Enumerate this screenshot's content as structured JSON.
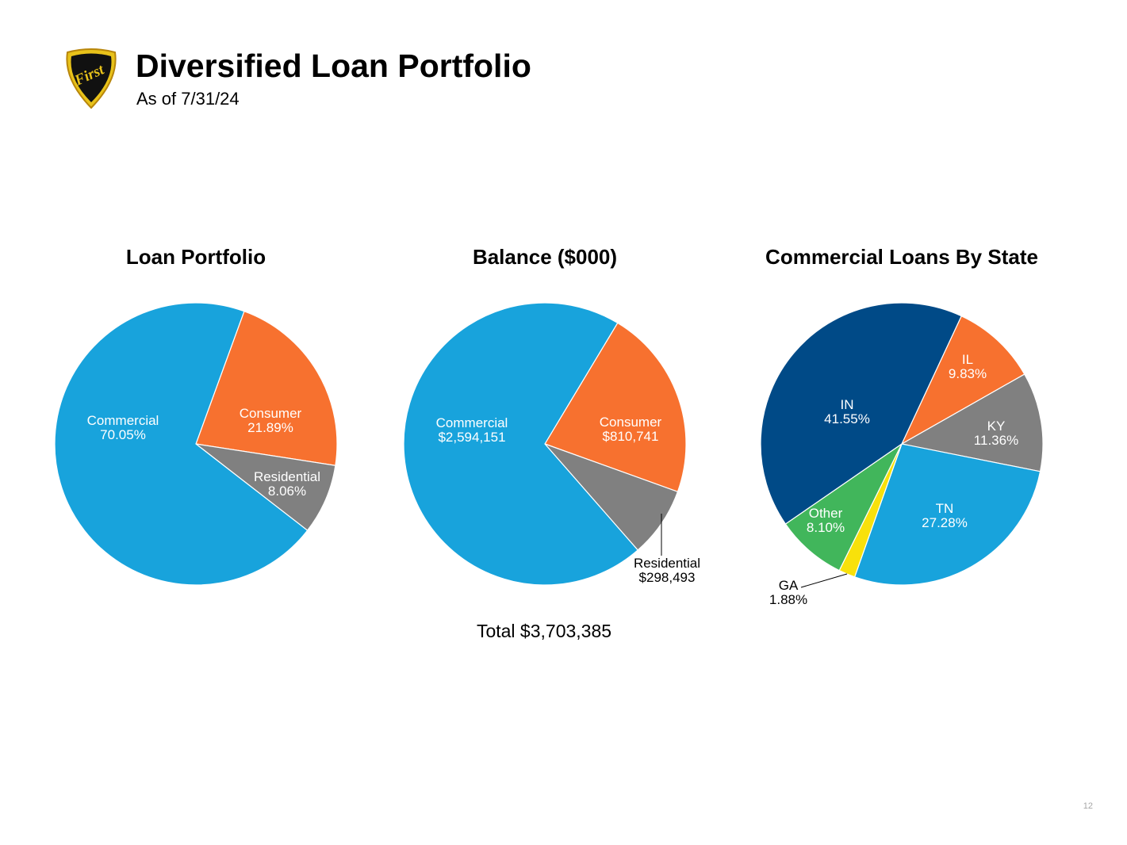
{
  "header": {
    "title": "Diversified Loan Portfolio",
    "subtitle": "As of 7/31/24",
    "logo_text": "First"
  },
  "colors": {
    "light_blue": "#18a3dc",
    "orange": "#f7712f",
    "gray": "#808080",
    "dark_blue": "#004a87",
    "green": "#41b65b",
    "yellow": "#f8e10b"
  },
  "footer": {
    "total": "Total $3,703,385",
    "page_number": "12"
  },
  "chart_data": [
    {
      "type": "pie",
      "title": "Loan Portfolio",
      "start_angle_deg": 20,
      "slices": [
        {
          "name": "Consumer",
          "value": 21.89,
          "label": "21.89%",
          "color": "#f7712f"
        },
        {
          "name": "Residential",
          "value": 8.06,
          "label": "8.06%",
          "color": "#808080"
        },
        {
          "name": "Commercial",
          "value": 70.05,
          "label": "70.05%",
          "color": "#18a3dc"
        }
      ]
    },
    {
      "type": "pie",
      "title": "Balance ($000)",
      "start_angle_deg": 31,
      "slices": [
        {
          "name": "Consumer",
          "value": 810741,
          "label": "$810,741",
          "color": "#f7712f"
        },
        {
          "name": "Residential",
          "value": 298493,
          "label": "$298,493",
          "color": "#808080"
        },
        {
          "name": "Commercial",
          "value": 2594151,
          "label": "$2,594,151",
          "color": "#18a3dc"
        }
      ]
    },
    {
      "type": "pie",
      "title": "Commercial Loans By State",
      "start_angle_deg": 25,
      "slices": [
        {
          "name": "IL",
          "value": 9.83,
          "label": "9.83%",
          "color": "#f7712f"
        },
        {
          "name": "KY",
          "value": 11.36,
          "label": "11.36%",
          "color": "#808080"
        },
        {
          "name": "TN",
          "value": 27.28,
          "label": "27.28%",
          "color": "#18a3dc"
        },
        {
          "name": "GA",
          "value": 1.88,
          "label": "1.88%",
          "color": "#f8e10b"
        },
        {
          "name": "Other",
          "value": 8.1,
          "label": "8.10%",
          "color": "#41b65b"
        },
        {
          "name": "IN",
          "value": 41.55,
          "label": "41.55%",
          "color": "#004a87"
        }
      ]
    }
  ]
}
